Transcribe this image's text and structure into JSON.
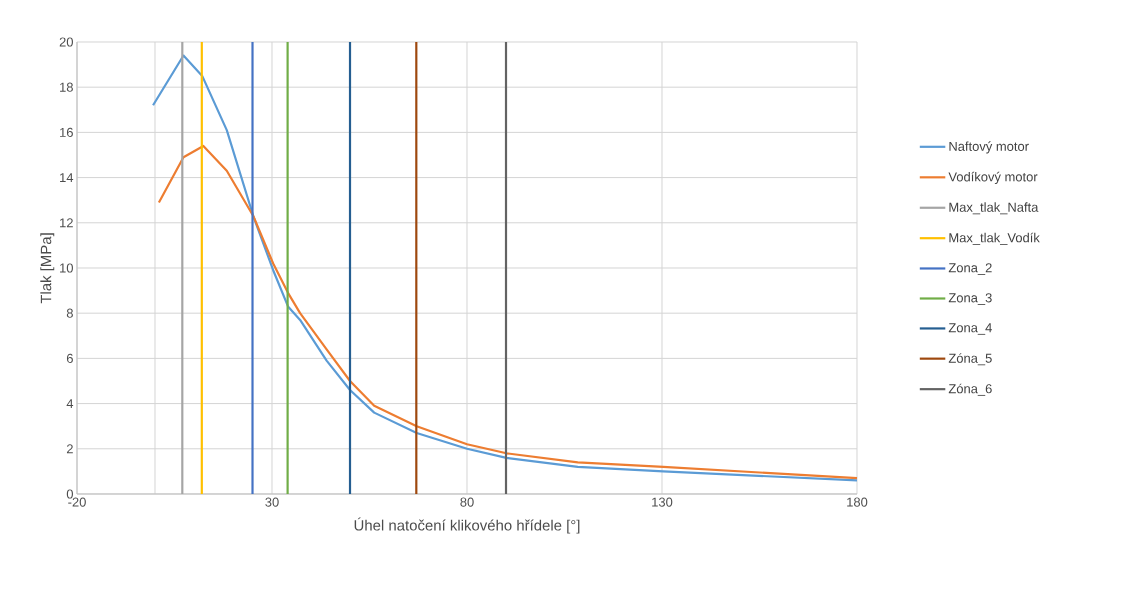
{
  "chart_data": {
    "type": "line",
    "xlabel": "Úhel natočení klikového hřídele [°]",
    "ylabel": "Tlak  [MPa]",
    "xlim": [
      -20,
      180
    ],
    "ylim": [
      0,
      20
    ],
    "xticks": [
      -20,
      {
        "value": 0,
        "label": null
      },
      30,
      80,
      130,
      180
    ],
    "yticks": [
      0,
      2,
      4,
      6,
      8,
      10,
      12,
      14,
      16,
      18,
      20
    ],
    "grid": true,
    "legend": "right",
    "series": [
      {
        "name": "Naftový motor",
        "color": "#5b9bd5",
        "x": [
          -0.5,
          7.3,
          12.1,
          18.4,
          25.2,
          30.3,
          34.1,
          37.2,
          44.0,
          50.0,
          56.2,
          67.1,
          80,
          90.1,
          108.4,
          130.3,
          180
        ],
        "values": [
          17.2,
          19.4,
          18.5,
          16.1,
          12.3,
          9.9,
          8.3,
          7.7,
          5.9,
          4.6,
          3.6,
          2.7,
          2.0,
          1.6,
          1.2,
          1.0,
          0.6
        ]
      },
      {
        "name": "Vodíkový motor",
        "color": "#ed7d31",
        "x": [
          1.0,
          7.3,
          12.4,
          18.4,
          25.2,
          30.3,
          34.1,
          37.2,
          44.0,
          50.0,
          56.2,
          67.1,
          80,
          90.1,
          108.4,
          130.3,
          180
        ],
        "values": [
          12.9,
          14.9,
          15.4,
          14.3,
          12.3,
          10.2,
          8.9,
          8.0,
          6.4,
          5.0,
          3.9,
          3.0,
          2.2,
          1.8,
          1.4,
          1.2,
          0.7
        ]
      },
      {
        "name": "Max_tlak_Nafta",
        "color": "#a5a5a5",
        "x": [
          7,
          7
        ],
        "values": [
          0,
          20
        ]
      },
      {
        "name": "Max_tlak_Vodík",
        "color": "#ffc000",
        "x": [
          12,
          12
        ],
        "values": [
          0,
          20
        ]
      },
      {
        "name": "Zona_2",
        "color": "#4472c4",
        "x": [
          25,
          25
        ],
        "values": [
          0,
          20
        ]
      },
      {
        "name": "Zona_3",
        "color": "#70ad47",
        "x": [
          34,
          34
        ],
        "values": [
          0,
          20
        ]
      },
      {
        "name": "Zona_4",
        "color": "#255e91",
        "x": [
          50,
          50
        ],
        "values": [
          0,
          20
        ]
      },
      {
        "name": "Zóna_5",
        "color": "#9e480e",
        "x": [
          67,
          67
        ],
        "values": [
          0,
          20
        ]
      },
      {
        "name": "Zóna_6",
        "color": "#636363",
        "x": [
          90,
          90
        ],
        "values": [
          0,
          20
        ]
      }
    ]
  }
}
